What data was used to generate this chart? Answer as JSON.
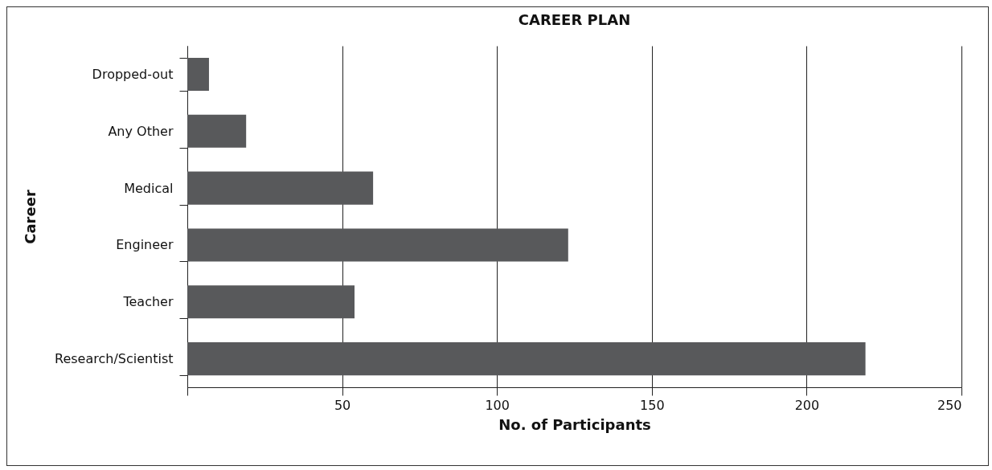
{
  "chart_data": {
    "type": "bar",
    "orientation": "horizontal",
    "title": "CAREER PLAN",
    "xlabel": "No. of Participants",
    "ylabel": "Career",
    "categories": [
      "Dropped-out",
      "Any Other",
      "Medical",
      "Engineer",
      "Teacher",
      "Research/Scientist"
    ],
    "values": [
      7,
      19,
      60,
      123,
      54,
      219
    ],
    "color": "#58595b",
    "xlim": [
      0,
      250
    ],
    "xticks": [
      {
        "value": 0,
        "label": null
      },
      50,
      100,
      150,
      200,
      250
    ],
    "grid": "x"
  }
}
